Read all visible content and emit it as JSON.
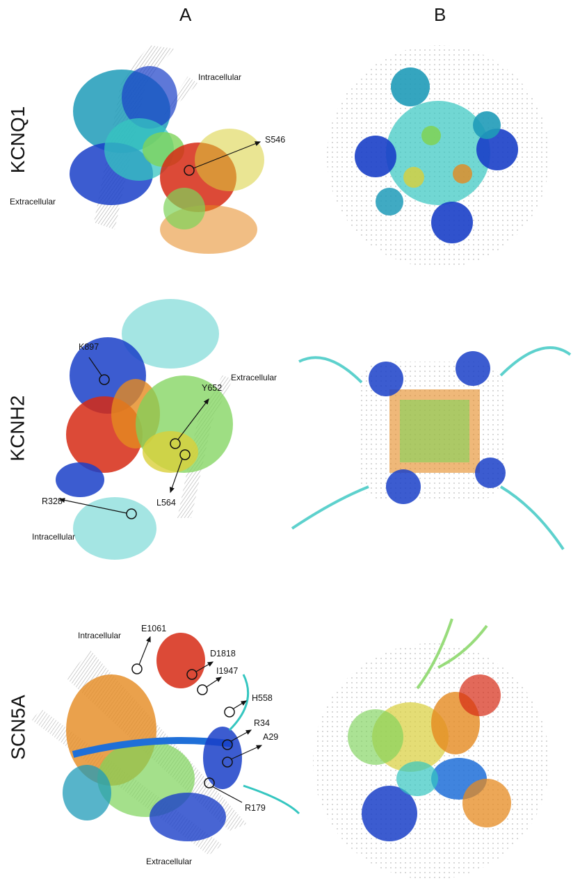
{
  "columns": {
    "a": "A",
    "b": "B"
  },
  "rows": {
    "kcnq1": {
      "name": "KCNQ1",
      "intracellular": "Intracellular",
      "extracellular": "Extracellular",
      "residues": {
        "s546": "S546"
      }
    },
    "kcnh2": {
      "name": "KCNH2",
      "intracellular": "Intracellular",
      "extracellular": "Extracellular",
      "residues": {
        "k897": "K897",
        "y652": "Y652",
        "l564": "L564",
        "r328": "R328"
      }
    },
    "scn5a": {
      "name": "SCN5A",
      "intracellular": "Intracellular",
      "extracellular": "Extracellular",
      "residues": {
        "e1061": "E1061",
        "d1818": "D1818",
        "i1947": "I1947",
        "h558": "H558",
        "r34": "R34",
        "a29": "A29",
        "r179": "R179"
      }
    }
  },
  "colors": {
    "blue": "#1a3fc8",
    "teal": "#1f9bb8",
    "cyan": "#35c6c0",
    "green": "#7ed35a",
    "yellow": "#d9cf3a",
    "orange": "#e5891f",
    "red": "#d62a14",
    "membrane": "#b5b5b5"
  }
}
